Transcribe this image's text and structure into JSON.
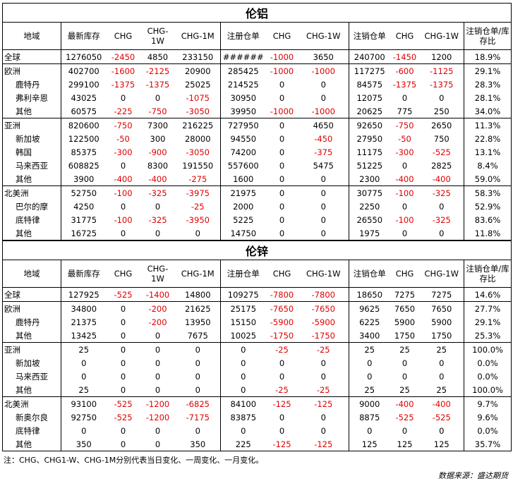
{
  "note": "注：CHG、CHG1-W、CHG-1M分别代表当日变化、一周变化、一月变化。",
  "source": "数据来源：盛达期货",
  "colors": {
    "negative": "#e00000",
    "border": "#000000"
  },
  "tables": [
    {
      "title": "伦铝",
      "headers": [
        "地域",
        "最新库存",
        "CHG",
        "CHG-1W",
        "CHG-1M",
        "注册仓单",
        "CHG",
        "CHG-1W",
        "注销仓单",
        "CHG",
        "CHG-1W",
        "注销仓单/库存比"
      ],
      "groups": [
        {
          "rows": [
            [
              "全球",
              "1276050",
              "-2450",
              "4850",
              "233150",
              "######",
              "-1000",
              "3650",
              "240700",
              "-1450",
              "1200",
              "18.9%"
            ]
          ]
        },
        {
          "rows": [
            [
              "欧洲",
              "402700",
              "-1600",
              "-2125",
              "20900",
              "285425",
              "-1000",
              "-1000",
              "117275",
              "-600",
              "-1125",
              "29.1%"
            ],
            [
              "鹿特丹",
              "299100",
              "-1375",
              "-1375",
              "25025",
              "214525",
              "0",
              "0",
              "84575",
              "-1375",
              "-1375",
              "28.3%"
            ],
            [
              "弗利辛恩",
              "43025",
              "0",
              "0",
              "-1075",
              "30950",
              "0",
              "0",
              "12075",
              "0",
              "0",
              "28.1%"
            ],
            [
              "其他",
              "60575",
              "-225",
              "-750",
              "-3050",
              "39950",
              "-1000",
              "-1000",
              "20625",
              "775",
              "250",
              "34.0%"
            ]
          ]
        },
        {
          "rows": [
            [
              "亚洲",
              "820600",
              "-750",
              "7300",
              "216225",
              "727950",
              "0",
              "4650",
              "92650",
              "-750",
              "2650",
              "11.3%"
            ],
            [
              "新加坡",
              "122500",
              "-50",
              "300",
              "28000",
              "94550",
              "0",
              "-450",
              "27950",
              "-50",
              "750",
              "22.8%"
            ],
            [
              "韩国",
              "85375",
              "-300",
              "-900",
              "-3050",
              "74200",
              "0",
              "-375",
              "11175",
              "-300",
              "-525",
              "13.1%"
            ],
            [
              "马来西亚",
              "608825",
              "0",
              "8300",
              "191550",
              "557600",
              "0",
              "5475",
              "51225",
              "0",
              "2825",
              "8.4%"
            ],
            [
              "其他",
              "3900",
              "-400",
              "-400",
              "-275",
              "1600",
              "0",
              "0",
              "2300",
              "-400",
              "-400",
              "59.0%"
            ]
          ]
        },
        {
          "rows": [
            [
              "北美洲",
              "52750",
              "-100",
              "-325",
              "-3975",
              "21975",
              "0",
              "0",
              "30775",
              "-100",
              "-325",
              "58.3%"
            ],
            [
              "巴尔的摩",
              "4250",
              "0",
              "0",
              "-25",
              "2000",
              "0",
              "0",
              "2250",
              "0",
              "0",
              "52.9%"
            ],
            [
              "底特律",
              "31775",
              "-100",
              "-325",
              "-3950",
              "5225",
              "0",
              "0",
              "26550",
              "-100",
              "-325",
              "83.6%"
            ],
            [
              "其他",
              "16725",
              "0",
              "0",
              "0",
              "14750",
              "0",
              "0",
              "1975",
              "0",
              "0",
              "11.8%"
            ]
          ]
        }
      ]
    },
    {
      "title": "伦锌",
      "headers": [
        "地域",
        "最新库存",
        "CHG",
        "CHG-1W",
        "CHG-1M",
        "注册仓单",
        "CHG",
        "CHG-1W",
        "注销仓单",
        "CHG",
        "CHG-1W",
        "注销仓单/库存比"
      ],
      "groups": [
        {
          "rows": [
            [
              "全球",
              "127925",
              "-525",
              "-1400",
              "14800",
              "109275",
              "-7800",
              "-7800",
              "18650",
              "7275",
              "7275",
              "14.6%"
            ]
          ]
        },
        {
          "rows": [
            [
              "欧洲",
              "34800",
              "0",
              "-200",
              "21625",
              "25175",
              "-7650",
              "-7650",
              "9625",
              "7650",
              "7650",
              "27.7%"
            ],
            [
              "鹿特丹",
              "21375",
              "0",
              "-200",
              "13950",
              "15150",
              "-5900",
              "-5900",
              "6225",
              "5900",
              "5900",
              "29.1%"
            ],
            [
              "其他",
              "13425",
              "0",
              "0",
              "7675",
              "10025",
              "-1750",
              "-1750",
              "3400",
              "1750",
              "1750",
              "25.3%"
            ]
          ]
        },
        {
          "rows": [
            [
              "亚洲",
              "25",
              "0",
              "0",
              "0",
              "0",
              "-25",
              "-25",
              "25",
              "25",
              "25",
              "100.0%"
            ],
            [
              "新加坡",
              "0",
              "0",
              "0",
              "0",
              "0",
              "0",
              "0",
              "0",
              "0",
              "0",
              "0.0%"
            ],
            [
              "马来西亚",
              "0",
              "0",
              "0",
              "0",
              "0",
              "0",
              "0",
              "0",
              "0",
              "0",
              "0.0%"
            ],
            [
              "其他",
              "25",
              "0",
              "0",
              "0",
              "0",
              "-25",
              "-25",
              "25",
              "25",
              "25",
              "100.0%"
            ]
          ]
        },
        {
          "rows": [
            [
              "北美洲",
              "93100",
              "-525",
              "-1200",
              "-6825",
              "84100",
              "-125",
              "-125",
              "9000",
              "-400",
              "-400",
              "9.7%"
            ],
            [
              "新奥尔良",
              "92750",
              "-525",
              "-1200",
              "-7175",
              "83875",
              "0",
              "0",
              "8875",
              "-525",
              "-525",
              "9.6%"
            ],
            [
              "底特律",
              "0",
              "0",
              "0",
              "0",
              "0",
              "0",
              "0",
              "0",
              "0",
              "0",
              "0.0%"
            ],
            [
              "其他",
              "350",
              "0",
              "0",
              "350",
              "225",
              "-125",
              "-125",
              "125",
              "125",
              "125",
              "35.7%"
            ]
          ]
        }
      ]
    }
  ]
}
